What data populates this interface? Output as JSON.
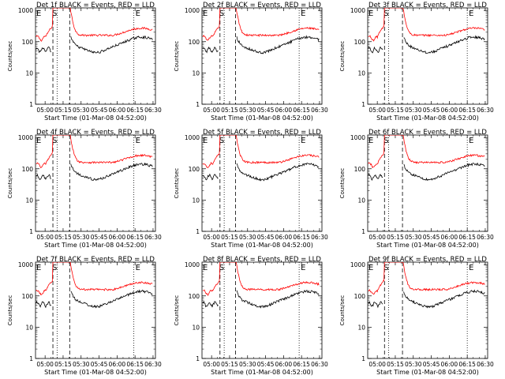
{
  "chart_data": [
    {
      "type": "line",
      "title": "Det 1f BLACK = Events, RED = LLD",
      "xlabel": "Start Time (01-Mar-08 04:52:00)",
      "ylabel": "Counts/sec",
      "markers": [
        "E",
        "S",
        "E"
      ],
      "variant": 0
    },
    {
      "type": "line",
      "title": "Det 2f BLACK = Events, RED = LLD",
      "xlabel": "Start Time (01-Mar-08 04:52:00)",
      "ylabel": "Counts/sec",
      "markers": [
        "E",
        "S",
        "E"
      ],
      "variant": 1
    },
    {
      "type": "line",
      "title": "Det 3f BLACK = Events, RED = LLD",
      "xlabel": "Start Time (01-Mar-08 04:52:00)",
      "ylabel": "Counts/sec",
      "markers": [
        "E",
        "S",
        "E"
      ],
      "variant": 2
    },
    {
      "type": "line",
      "title": "Det 4f BLACK = Events, RED = LLD",
      "xlabel": "Start Time (01-Mar-08 04:52:00)",
      "ylabel": "Counts/sec",
      "markers": [
        "E",
        "S",
        "E"
      ],
      "variant": 0
    },
    {
      "type": "line",
      "title": "Det 5f BLACK = Events, RED = LLD",
      "xlabel": "Start Time (01-Mar-08 04:52:00)",
      "ylabel": "Counts/sec",
      "markers": [
        "E",
        "S",
        "E"
      ],
      "variant": 1
    },
    {
      "type": "line",
      "title": "Det 6f BLACK = Events, RED = LLD",
      "xlabel": "Start Time (01-Mar-08 04:52:00)",
      "ylabel": "Counts/sec",
      "markers": [
        "E",
        "S",
        "E"
      ],
      "variant": 2
    },
    {
      "type": "line",
      "title": "Det 7f BLACK = Events, RED = LLD",
      "xlabel": "Start Time (01-Mar-08 04:52:00)",
      "ylabel": "Counts/sec",
      "markers": [
        "E",
        "S",
        "E"
      ],
      "variant": 0
    },
    {
      "type": "line",
      "title": "Det 8f BLACK = Events, RED = LLD",
      "xlabel": "Start Time (01-Mar-08 04:52:00)",
      "ylabel": "Counts/sec",
      "markers": [
        "E",
        "S",
        "E"
      ],
      "variant": 1
    },
    {
      "type": "line",
      "title": "Det 9f BLACK = Events, RED = LLD",
      "xlabel": "Start Time (01-Mar-08 04:52:00)",
      "ylabel": "Counts/sec",
      "markers": [
        "E",
        "S",
        "E"
      ],
      "variant": 2
    }
  ],
  "shared": {
    "xticks": [
      "05:00",
      "05:15",
      "05:30",
      "05:45",
      "06:00",
      "06:15",
      "06:30"
    ],
    "xtick_minutes": [
      8,
      23,
      38,
      53,
      68,
      83,
      98
    ],
    "xlim_minutes": [
      0,
      100
    ],
    "yticks": [
      "1",
      "10",
      "100",
      "1000"
    ],
    "ytick_values": [
      1,
      10,
      100,
      1000
    ],
    "ylim": [
      1,
      1200
    ],
    "yscale": "log",
    "series": [
      {
        "name": "Events",
        "color": "#000000"
      },
      {
        "name": "LLD",
        "color": "#ff0000"
      }
    ],
    "event_lines": {
      "dashed_minutes": [
        [
          14.5,
          28.5
        ],
        [
          15.0,
          28.0
        ],
        [
          14.0,
          29.0
        ]
      ],
      "dotted_minutes": [
        [
          18,
          82
        ],
        [
          18.5,
          81
        ],
        [
          17.5,
          83
        ]
      ]
    }
  }
}
